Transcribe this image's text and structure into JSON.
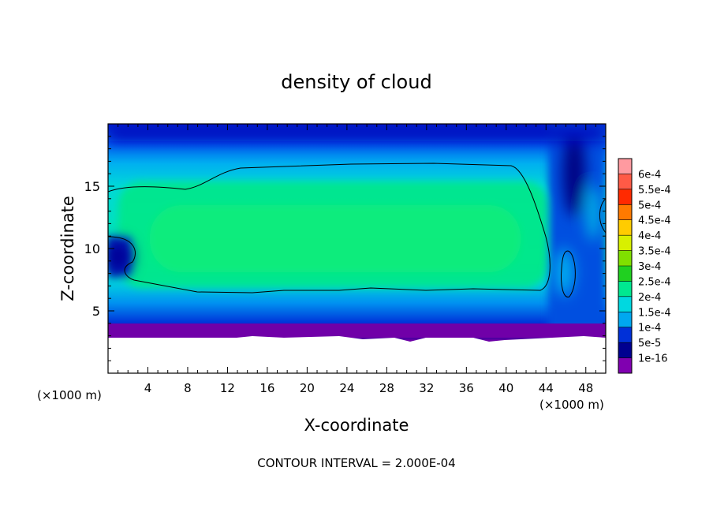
{
  "chart_data": {
    "type": "heatmap",
    "title": "density of cloud",
    "xlabel": "X-coordinate",
    "ylabel": "Z-coordinate",
    "x_unit": "(×1000 m)",
    "y_unit": "(×1000 m)",
    "xlim": [
      0,
      50
    ],
    "ylim": [
      0,
      20
    ],
    "x_ticks": [
      4,
      8,
      12,
      16,
      20,
      24,
      28,
      32,
      36,
      40,
      44,
      48
    ],
    "y_ticks": [
      5,
      10,
      15
    ],
    "footer": "CONTOUR INTERVAL = 2.000E-04",
    "colorbar": {
      "labels": [
        "6e-4",
        "5.5e-4",
        "5e-4",
        "4.5e-4",
        "4e-4",
        "3.5e-4",
        "3e-4",
        "2.5e-4",
        "2e-4",
        "1.5e-4",
        "1e-4",
        "5e-5",
        "1e-16"
      ],
      "colors": [
        "#ff9aa0",
        "#ff5a46",
        "#ff2a00",
        "#ff7a00",
        "#ffcc00",
        "#d8f000",
        "#80e000",
        "#20d020",
        "#00e890",
        "#00d8e0",
        "#00a8f0",
        "#0030d8",
        "#000090",
        "#8000b0"
      ]
    },
    "contour_level": 0.0002
  }
}
